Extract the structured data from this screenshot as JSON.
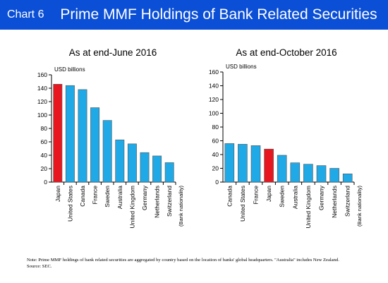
{
  "header": {
    "chart_number": "Chart 6",
    "title": "Prime MMF Holdings of Bank Related Securities"
  },
  "chart_data": [
    {
      "type": "bar",
      "title": "As at end-June 2016",
      "ylabel": "USD billions",
      "xlabel": "(Bank nationality)",
      "ylim": [
        0,
        160
      ],
      "yticks": [
        0,
        20,
        40,
        60,
        80,
        100,
        120,
        140,
        160
      ],
      "categories": [
        "Japan",
        "United States",
        "Canada",
        "France",
        "Sweden",
        "Australia",
        "United Kingdom",
        "Germany",
        "Netherlands",
        "Switzerland"
      ],
      "values": [
        146,
        144,
        138,
        111,
        92,
        63,
        57,
        44,
        39,
        29
      ],
      "highlight": "Japan",
      "colors": {
        "bar": "#1fa9e6",
        "highlight": "#e8161f"
      },
      "grid": false
    },
    {
      "type": "bar",
      "title": "As at end-October 2016",
      "ylabel": "USD billions",
      "xlabel": "(Bank nationality)",
      "ylim": [
        0,
        160
      ],
      "yticks": [
        0,
        20,
        40,
        60,
        80,
        100,
        120,
        140,
        160
      ],
      "categories": [
        "Canada",
        "United States",
        "France",
        "Japan",
        "Sweden",
        "Australia",
        "United Kingdom",
        "Germany",
        "Netherlands",
        "Switzerland"
      ],
      "values": [
        56,
        55,
        53,
        48,
        39,
        28,
        26,
        24,
        20,
        12
      ],
      "highlight": "Japan",
      "colors": {
        "bar": "#1fa9e6",
        "highlight": "#e8161f"
      },
      "grid": false
    }
  ],
  "note": {
    "text": "Note: Prime MMF holdings of bank related securities are aggregated by country based on the location of banks' global headquarters. \"Australia\" includes New Zealand.",
    "source": "Source: SEC."
  }
}
